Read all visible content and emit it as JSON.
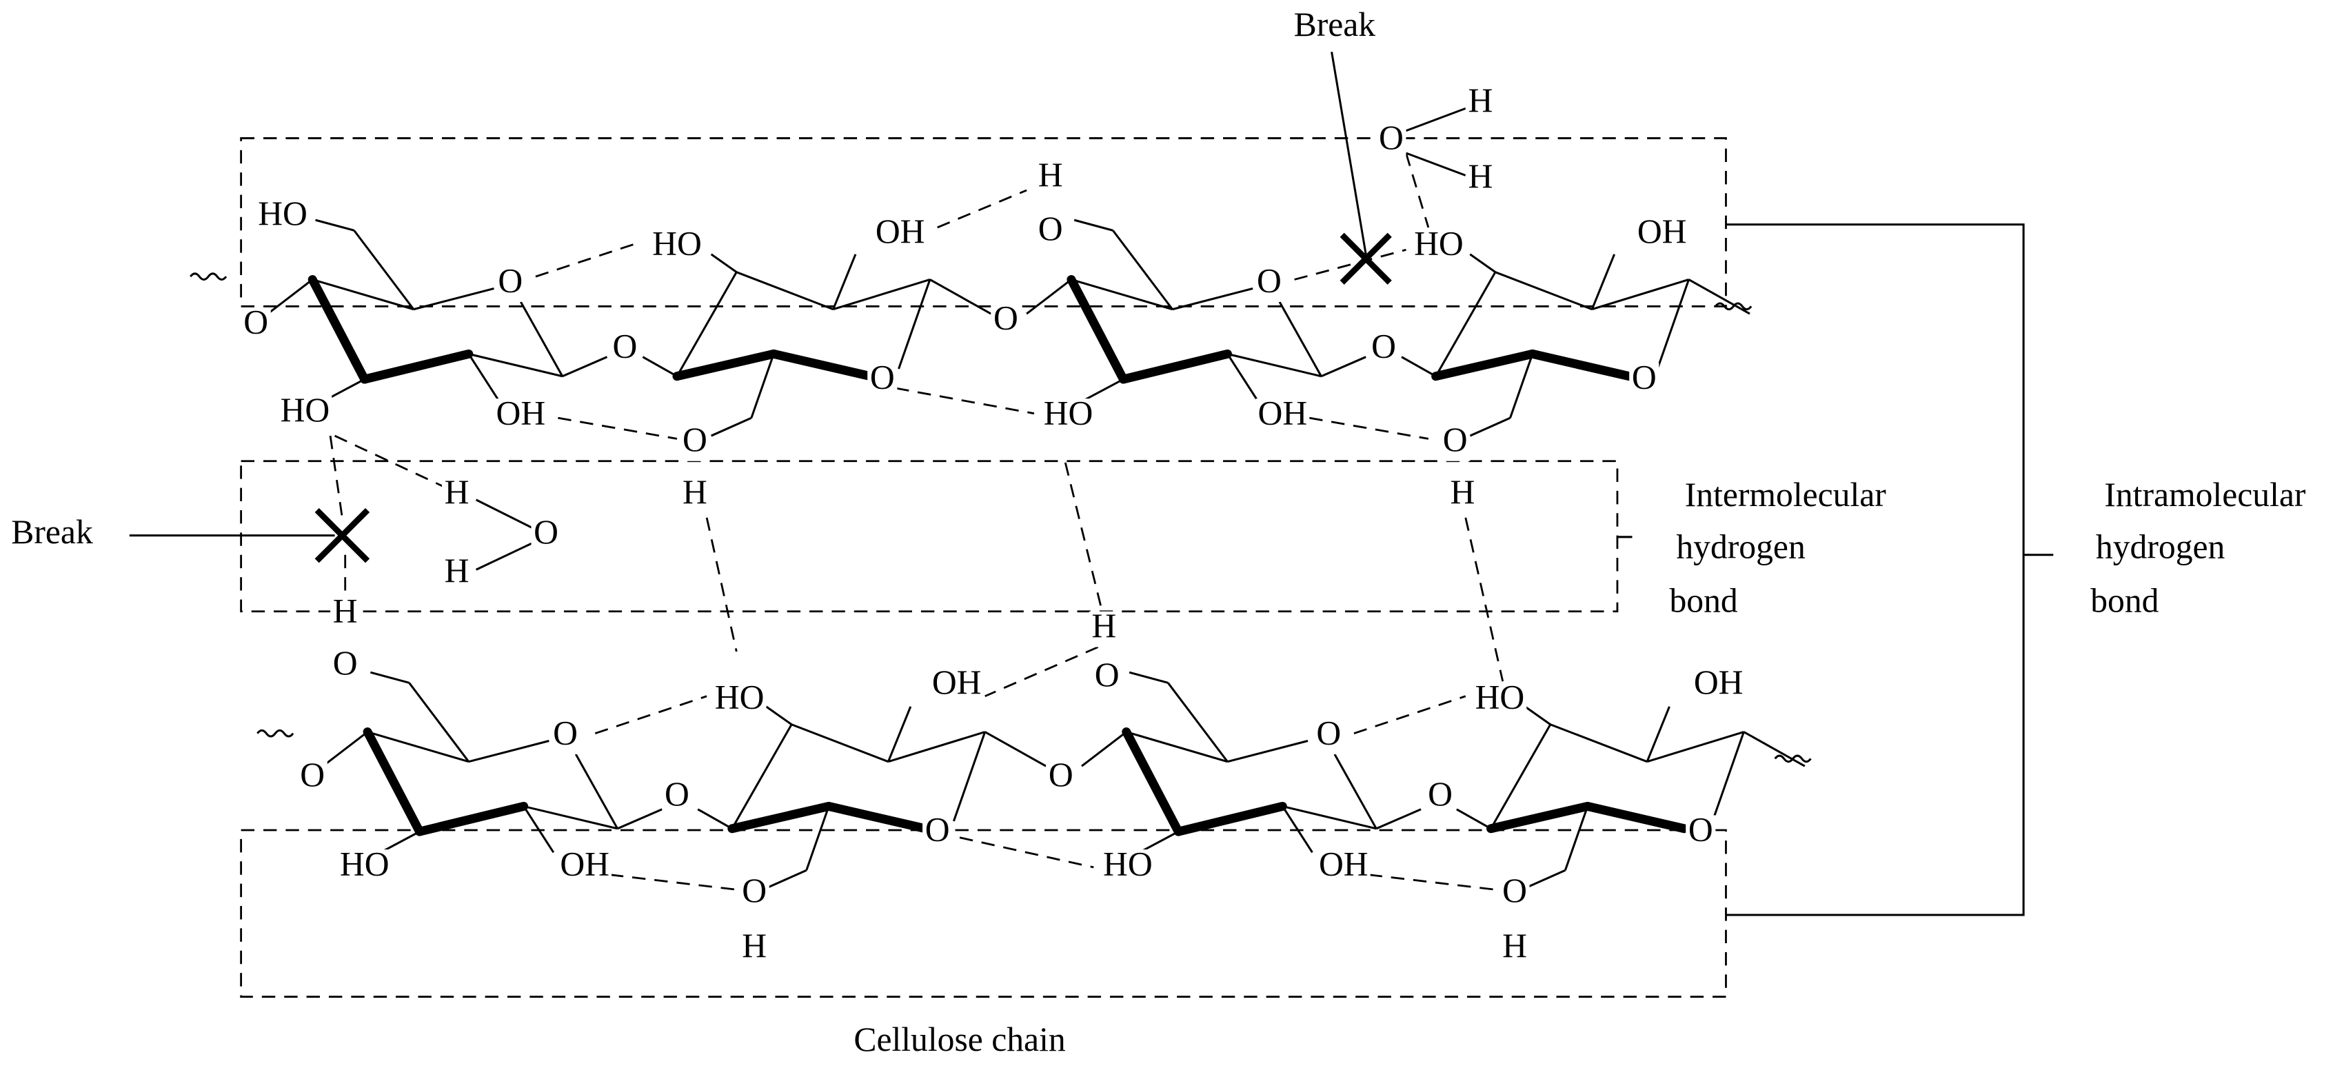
{
  "atoms": [
    "HO",
    "O",
    "O",
    "O",
    "HO",
    "OH",
    "HO",
    "OH",
    "H",
    "O",
    "O",
    "O",
    "O",
    "HO",
    "O",
    "OH",
    "O",
    "O",
    "HO",
    "OH",
    "O",
    "O",
    "H",
    "H",
    "H",
    "H",
    "O",
    "H",
    "H",
    "H",
    "H",
    "O",
    "O",
    "HO",
    "OH",
    "O",
    "O",
    "O",
    "O",
    "O",
    "HO",
    "OH",
    "O",
    "H",
    "O",
    "HO",
    "OH",
    "O",
    "O",
    "HO",
    "OH",
    "O",
    "H"
  ],
  "annotations": {
    "break_top": "Break",
    "break_left": "Break",
    "intermolecular": [
      "Intermolecular",
      "hydrogen",
      "bond"
    ],
    "intramolecular": [
      "Intramolecular",
      "hydrogen",
      "bond"
    ],
    "caption": "Cellulose chain"
  }
}
